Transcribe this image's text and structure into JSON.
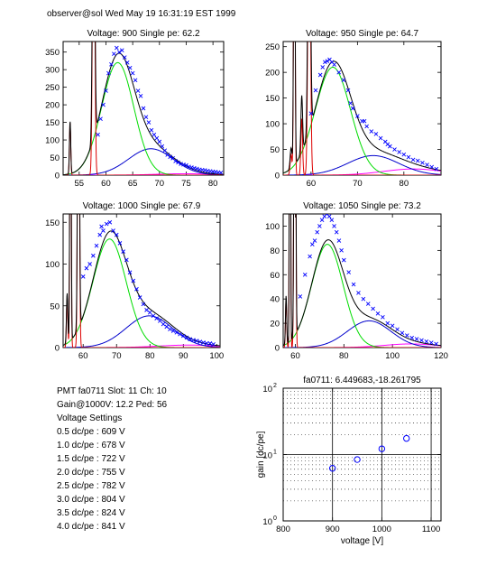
{
  "header": {
    "text": "observer@sol Wed May 19 16:31:19 EST 1999"
  },
  "info": {
    "pmt_line": "PMT fa0711 Slot: 11 Ch: 10",
    "gain_line": "Gain@1000V: 12.2 Ped: 56",
    "settings_title": "Voltage Settings",
    "settings": [
      "0.5 dc/pe : 609 V",
      "1.0 dc/pe : 678 V",
      "1.5 dc/pe : 722 V",
      "2.0 dc/pe : 755 V",
      "2.5 dc/pe : 782 V",
      "3.0 dc/pe : 804 V",
      "3.5 dc/pe : 824 V",
      "4.0 dc/pe : 841 V"
    ]
  },
  "colors": {
    "data": "#0000ff",
    "total": "#000000",
    "single_pe": "#00dd00",
    "double_pe": "#0000cc",
    "triple_pe": "#ff00ff",
    "pedestal": "#dd0000",
    "gain_fit": "#ff0000"
  },
  "chart_data": [
    {
      "type": "scatter",
      "title": "Voltage: 900 Single pe: 62.2",
      "xlim": [
        52,
        82
      ],
      "ylim": [
        0,
        380
      ],
      "xticks": [
        55,
        60,
        65,
        70,
        75,
        80
      ],
      "yticks": [
        0,
        50,
        100,
        150,
        200,
        250,
        300,
        350
      ],
      "pedestal": 56,
      "single_pe": 62.2,
      "fit": {
        "g1": {
          "amp": 320,
          "mu": 62.2,
          "sigma": 3.0
        },
        "g2": {
          "amp": 75,
          "mu": 68.4,
          "sigma": 4.2
        },
        "g3": {
          "amp": 4,
          "mu": 74.6,
          "sigma": 5.2
        },
        "spikes": [
          {
            "x": 53.3,
            "h": 150,
            "w": 0.12
          },
          {
            "x": 57.7,
            "h": 1000,
            "w": 0.2
          }
        ]
      },
      "points": [
        [
          58.5,
          115
        ],
        [
          59.0,
          160
        ],
        [
          59.5,
          200
        ],
        [
          60.0,
          240
        ],
        [
          60.5,
          290
        ],
        [
          61.0,
          315
        ],
        [
          61.5,
          345
        ],
        [
          62.0,
          362
        ],
        [
          62.5,
          350
        ],
        [
          63.0,
          355
        ],
        [
          63.5,
          335
        ],
        [
          64.0,
          320
        ],
        [
          64.5,
          305
        ],
        [
          65.0,
          290
        ],
        [
          65.5,
          270
        ],
        [
          66.0,
          240
        ],
        [
          66.5,
          225
        ],
        [
          67.0,
          190
        ],
        [
          67.5,
          165
        ],
        [
          68.0,
          150
        ],
        [
          68.5,
          128
        ],
        [
          69.0,
          115
        ],
        [
          69.5,
          105
        ],
        [
          70.0,
          95
        ],
        [
          70.5,
          82
        ],
        [
          71.0,
          70
        ],
        [
          71.5,
          58
        ],
        [
          72.0,
          52
        ],
        [
          72.5,
          48
        ],
        [
          73.0,
          40
        ],
        [
          73.5,
          36
        ],
        [
          74.0,
          32
        ],
        [
          74.5,
          30
        ],
        [
          75.0,
          28
        ],
        [
          75.5,
          24
        ],
        [
          76.0,
          22
        ],
        [
          76.5,
          20
        ],
        [
          77.0,
          18
        ],
        [
          77.5,
          16
        ],
        [
          78.0,
          15
        ],
        [
          78.5,
          14
        ],
        [
          79.0,
          12
        ],
        [
          79.5,
          11
        ],
        [
          80.0,
          10
        ],
        [
          80.5,
          9
        ],
        [
          81.0,
          8
        ],
        [
          81.5,
          7
        ]
      ]
    },
    {
      "type": "scatter",
      "title": "Voltage: 950 Single pe: 64.7",
      "xlim": [
        54,
        88
      ],
      "ylim": [
        0,
        260
      ],
      "xticks": [
        60,
        70,
        80
      ],
      "yticks": [
        0,
        50,
        100,
        150,
        200,
        250
      ],
      "pedestal": 56,
      "single_pe": 64.7,
      "fit": {
        "g1": {
          "amp": 210,
          "mu": 64.7,
          "sigma": 3.8
        },
        "g2": {
          "amp": 38,
          "mu": 73.4,
          "sigma": 5.5
        },
        "g3": {
          "amp": 12,
          "mu": 82.1,
          "sigma": 6.5
        },
        "spikes": [
          {
            "x": 55.7,
            "h": 40,
            "w": 0.2
          },
          {
            "x": 56.4,
            "h": 700,
            "w": 0.15
          },
          {
            "x": 58.0,
            "h": 110,
            "w": 0.18
          },
          {
            "x": 59.6,
            "h": 700,
            "w": 0.25
          }
        ]
      },
      "points": [
        [
          60.0,
          120
        ],
        [
          61.0,
          165
        ],
        [
          62.0,
          195
        ],
        [
          62.5,
          210
        ],
        [
          63.0,
          220
        ],
        [
          63.5,
          222
        ],
        [
          64.0,
          225
        ],
        [
          64.5,
          220
        ],
        [
          65.0,
          215
        ],
        [
          66.0,
          200
        ],
        [
          67.0,
          185
        ],
        [
          68.0,
          165
        ],
        [
          68.5,
          140
        ],
        [
          69.0,
          130
        ],
        [
          70.0,
          115
        ],
        [
          71.0,
          105
        ],
        [
          71.5,
          105
        ],
        [
          72.0,
          95
        ],
        [
          73.0,
          85
        ],
        [
          74.0,
          80
        ],
        [
          75.0,
          72
        ],
        [
          76.0,
          65
        ],
        [
          76.5,
          60
        ],
        [
          77.0,
          56
        ],
        [
          78.0,
          50
        ],
        [
          79.0,
          45
        ],
        [
          80.0,
          40
        ],
        [
          81.0,
          35
        ],
        [
          82.0,
          30
        ],
        [
          83.0,
          28
        ],
        [
          84.0,
          24
        ],
        [
          85.0,
          20
        ],
        [
          86.0,
          16
        ],
        [
          87.0,
          12
        ]
      ]
    },
    {
      "type": "scatter",
      "title": "Voltage: 1000 Single pe: 67.9",
      "xlim": [
        54,
        101
      ],
      "ylim": [
        0,
        160
      ],
      "xticks": [
        60,
        70,
        80,
        90,
        100
      ],
      "yticks": [
        0,
        50,
        100,
        150
      ],
      "pedestal": 56,
      "single_pe": 67.9,
      "fit": {
        "g1": {
          "amp": 130,
          "mu": 67.9,
          "sigma": 5.0
        },
        "g2": {
          "amp": 38,
          "mu": 79.8,
          "sigma": 7.0
        },
        "g3": {
          "amp": 3,
          "mu": 91.7,
          "sigma": 9.0
        },
        "spikes": [
          {
            "x": 55.2,
            "h": 60,
            "w": 0.2
          },
          {
            "x": 56.2,
            "h": 500,
            "w": 0.18
          },
          {
            "x": 58.6,
            "h": 500,
            "w": 0.25
          }
        ]
      },
      "points": [
        [
          60.0,
          85
        ],
        [
          61.0,
          95
        ],
        [
          62.0,
          100
        ],
        [
          63.0,
          110
        ],
        [
          64.0,
          122
        ],
        [
          65.0,
          135
        ],
        [
          65.5,
          145
        ],
        [
          66.0,
          140
        ],
        [
          67.0,
          148
        ],
        [
          68.0,
          150
        ],
        [
          69.0,
          140
        ],
        [
          70.0,
          135
        ],
        [
          71.0,
          125
        ],
        [
          72.0,
          115
        ],
        [
          73.0,
          105
        ],
        [
          74.0,
          90
        ],
        [
          75.0,
          80
        ],
        [
          76.0,
          70
        ],
        [
          77.0,
          60
        ],
        [
          78.0,
          52
        ],
        [
          79.0,
          45
        ],
        [
          80.0,
          42
        ],
        [
          81.0,
          38
        ],
        [
          82.0,
          35
        ],
        [
          83.0,
          32
        ],
        [
          84.0,
          28
        ],
        [
          85.0,
          25
        ],
        [
          86.0,
          22
        ],
        [
          87.0,
          20
        ],
        [
          88.0,
          18
        ],
        [
          89.0,
          16
        ],
        [
          90.0,
          14
        ],
        [
          91.0,
          12
        ],
        [
          92.0,
          10
        ],
        [
          93.0,
          9
        ],
        [
          94.0,
          8
        ],
        [
          95.0,
          7
        ],
        [
          96.0,
          6
        ],
        [
          97.0,
          5
        ],
        [
          98.0,
          5
        ],
        [
          99.0,
          4
        ]
      ]
    },
    {
      "type": "scatter",
      "title": "Voltage: 1050 Single pe: 73.2",
      "xlim": [
        55,
        120
      ],
      "ylim": [
        0,
        110
      ],
      "xticks": [
        60,
        80,
        100,
        120
      ],
      "yticks": [
        0,
        20,
        40,
        60,
        80,
        100
      ],
      "pedestal": 56,
      "single_pe": 73.2,
      "fit": {
        "g1": {
          "amp": 85,
          "mu": 73.2,
          "sigma": 6.5
        },
        "g2": {
          "amp": 22,
          "mu": 90.4,
          "sigma": 9.0
        },
        "g3": {
          "amp": 3,
          "mu": 107.6,
          "sigma": 11.0
        },
        "spikes": [
          {
            "x": 56.2,
            "h": 40,
            "w": 0.25
          },
          {
            "x": 57.8,
            "h": 500,
            "w": 0.2
          },
          {
            "x": 59.8,
            "h": 500,
            "w": 0.3
          }
        ]
      },
      "points": [
        [
          62.0,
          42
        ],
        [
          64.0,
          60
        ],
        [
          66.0,
          75
        ],
        [
          67.0,
          85
        ],
        [
          68.0,
          88
        ],
        [
          69.0,
          95
        ],
        [
          70.0,
          100
        ],
        [
          71.0,
          105
        ],
        [
          72.0,
          108
        ],
        [
          73.0,
          110
        ],
        [
          74.0,
          108
        ],
        [
          75.0,
          105
        ],
        [
          76.0,
          100
        ],
        [
          77.0,
          95
        ],
        [
          78.0,
          88
        ],
        [
          79.0,
          80
        ],
        [
          80.0,
          72
        ],
        [
          82.0,
          62
        ],
        [
          84.0,
          52
        ],
        [
          86.0,
          45
        ],
        [
          88.0,
          40
        ],
        [
          90.0,
          36
        ],
        [
          92.0,
          32
        ],
        [
          94.0,
          28
        ],
        [
          96.0,
          25
        ],
        [
          98.0,
          20
        ],
        [
          100.0,
          18
        ],
        [
          102.0,
          15
        ],
        [
          104.0,
          12
        ],
        [
          106.0,
          10
        ],
        [
          108.0,
          8
        ],
        [
          110.0,
          7
        ],
        [
          112.0,
          6
        ],
        [
          114.0,
          5
        ],
        [
          116.0,
          4
        ],
        [
          118.0,
          3
        ]
      ]
    },
    {
      "type": "scatter",
      "title": "fa0711: 6.449683,-18.261795",
      "xlabel": "voltage [V]",
      "ylabel": "gain [dc/pe]",
      "xlim": [
        800,
        1120
      ],
      "ylim": [
        1,
        100
      ],
      "yscale": "log",
      "grid": true,
      "xticks": [
        800,
        900,
        1000,
        1100
      ],
      "yticks": [
        1,
        10,
        100
      ],
      "ytick_labels": [
        "10^0",
        "10^1",
        "10^2"
      ],
      "fit": {
        "slope": 6.449683,
        "intercept": -18.261795
      },
      "points": [
        [
          900,
          6.2
        ],
        [
          950,
          8.4
        ],
        [
          1000,
          12.2
        ],
        [
          1050,
          17.5
        ]
      ]
    }
  ]
}
